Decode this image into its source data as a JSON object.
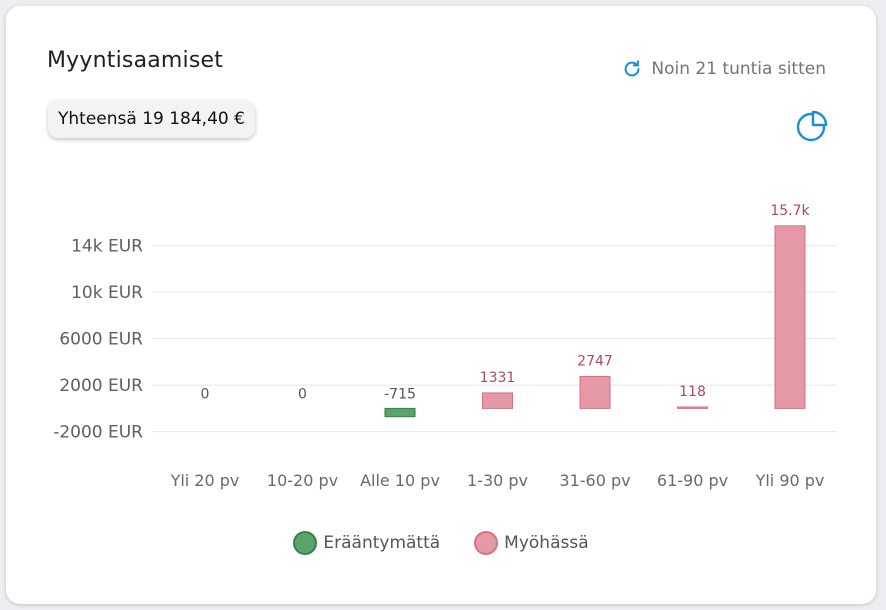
{
  "card": {
    "title": "Myyntisaamiset",
    "refresh_label": "Noin 21 tuntia sitten",
    "total_label": "Yhteensä 19 184,40 €"
  },
  "colors": {
    "accent": "#1a8fd6",
    "not_due_fill": "#5aa36b",
    "not_due_stroke": "#3d7d4e",
    "late_fill": "#e598a6",
    "late_stroke": "#d4727f",
    "late_label": "#b5475d",
    "neutral_label": "#555555"
  },
  "chart_data": {
    "type": "bar",
    "categories": [
      "Yli 20 pv",
      "10-20 pv",
      "Alle 10 pv",
      "1-30 pv",
      "31-60 pv",
      "61-90 pv",
      "Yli 90 pv"
    ],
    "values": [
      0,
      0,
      -715,
      1331,
      2747,
      118,
      15700
    ],
    "value_labels": [
      "0",
      "0",
      "-715",
      "1331",
      "2747",
      "118",
      "15.7k"
    ],
    "series_of_category": [
      "Erääntymättä",
      "Erääntymättä",
      "Erääntymättä",
      "Myöhässä",
      "Myöhässä",
      "Myöhässä",
      "Myöhässä"
    ],
    "legend": [
      "Erääntymättä",
      "Myöhässä"
    ],
    "yticks": [
      -2000,
      2000,
      6000,
      10000,
      14000
    ],
    "ytick_labels": [
      "-2000 EUR",
      "2000 EUR",
      "6000 EUR",
      "10k EUR",
      "14k EUR"
    ],
    "ylim": [
      -4000,
      18000
    ],
    "grid": true,
    "legend_position": "bottom"
  }
}
